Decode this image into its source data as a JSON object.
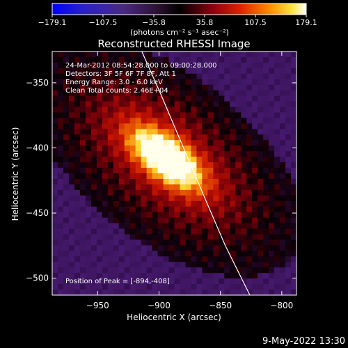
{
  "colorbar": {
    "ticks": [
      -179.1,
      -107.5,
      -35.8,
      35.8,
      107.5,
      179.1
    ],
    "tick_labels": [
      "-179.1",
      "-107.5",
      "-35.8",
      "35.8",
      "107.5",
      "179.1"
    ],
    "range": [
      -179.1,
      179.1
    ],
    "units": "(photons cm⁻² s⁻¹ asec⁻²)"
  },
  "chart_data": {
    "type": "heatmap",
    "title": "Reconstructed RHESSI Image",
    "xlabel": "Heliocentric X (arcsec)",
    "ylabel": "Heliocentric Y (arcsec)",
    "xlim": [
      -987,
      -788
    ],
    "ylim": [
      -513,
      -326
    ],
    "xticks": [
      -950,
      -900,
      -850,
      -800
    ],
    "yticks": [
      -350,
      -400,
      -450,
      -500
    ],
    "xtick_labels": [
      "-950",
      "-900",
      "-850",
      "-800"
    ],
    "ytick_labels": [
      "-350",
      "-400",
      "-450",
      "-500"
    ],
    "peak": {
      "x": -894,
      "y": -408,
      "value": 179.1
    },
    "limb_line": [
      [
        -914,
        -326
      ],
      [
        -898,
        -360
      ],
      [
        -880,
        -400
      ],
      [
        -862,
        -440
      ],
      [
        -846,
        -475
      ],
      [
        -826,
        -513
      ]
    ],
    "annotations": [
      "24-Mar-2012 08:54:28.000 to 09:00:28.000",
      "Detectors: 3F 5F 6F 7F 8F, Att 1",
      "Energy Range: 3.0 - 6.0 keV",
      "Clean     Total counts: 2.46E+04"
    ],
    "peak_label": "Position of Peak = [-894,-408]"
  },
  "footer": {
    "timestamp": "9-May-2022 13:30"
  }
}
